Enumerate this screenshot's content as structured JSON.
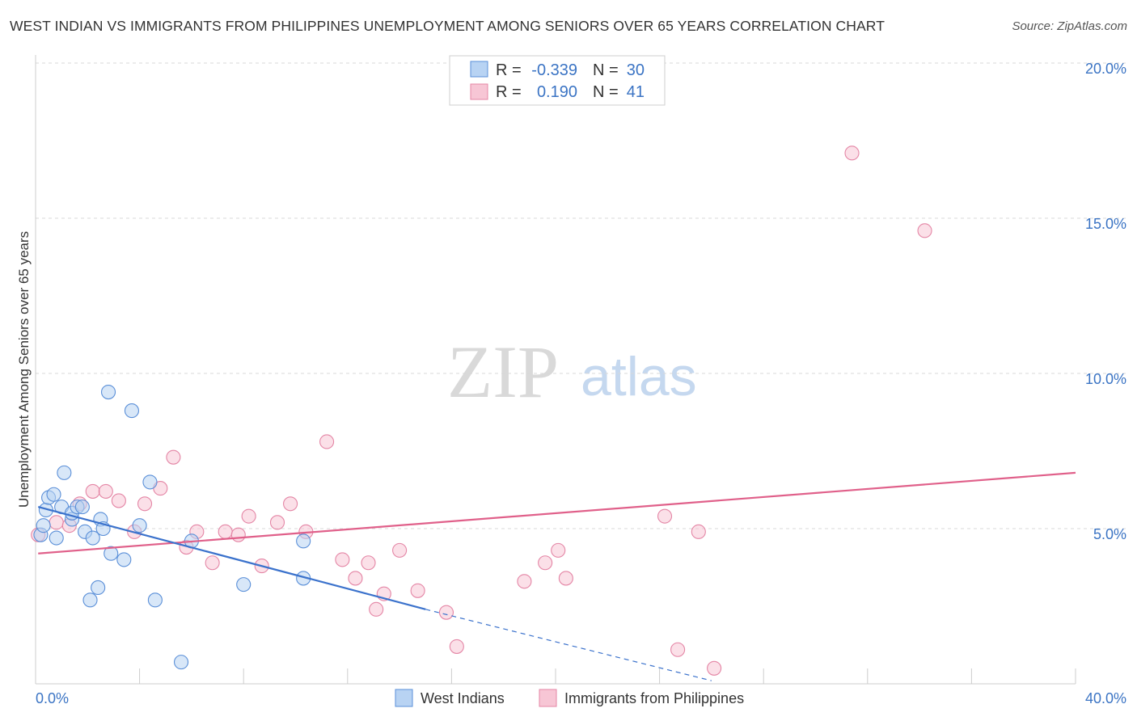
{
  "header": {
    "title": "WEST INDIAN VS IMMIGRANTS FROM PHILIPPINES UNEMPLOYMENT AMONG SENIORS OVER 65 YEARS CORRELATION CHART",
    "source": "Source: ZipAtlas.com"
  },
  "watermark": {
    "zip": "ZIP",
    "atlas": "atlas"
  },
  "legend": {
    "row1": {
      "r_label": "R =",
      "r_value": "-0.339",
      "n_label": "N =",
      "n_value": "30"
    },
    "row2": {
      "r_label": "R =",
      "r_value": "0.190",
      "n_label": "N =",
      "n_value": "41"
    }
  },
  "bottom_legend": {
    "series1": "West Indians",
    "series2": "Immigrants from Philippines"
  },
  "colors": {
    "blue_fill": "#b8d3f3",
    "blue_stroke": "#5a8fd8",
    "blue_line": "#3b72cc",
    "pink_fill": "#f7c6d5",
    "pink_stroke": "#e485a5",
    "pink_line": "#e0608a",
    "tick_text": "#3b74c4",
    "grid": "#d8d8d8"
  },
  "chart_data": {
    "type": "scatter",
    "title": "WEST INDIAN VS IMMIGRANTS FROM PHILIPPINES UNEMPLOYMENT AMONG SENIORS OVER 65 YEARS CORRELATION CHART",
    "xlabel": "",
    "ylabel": "Unemployment Among Seniors over 65 years",
    "xlim": [
      0,
      40
    ],
    "ylim": [
      0,
      20
    ],
    "x_tick_labels": [
      "0.0%",
      "40.0%"
    ],
    "y_ticks": [
      5,
      10,
      15,
      20
    ],
    "y_tick_labels": [
      "5.0%",
      "10.0%",
      "15.0%",
      "20.0%"
    ],
    "series": [
      {
        "name": "West Indians",
        "R": -0.339,
        "N": 30,
        "points": [
          [
            0.2,
            4.8
          ],
          [
            0.3,
            5.1
          ],
          [
            0.4,
            5.6
          ],
          [
            0.5,
            6.0
          ],
          [
            0.7,
            6.1
          ],
          [
            0.8,
            4.7
          ],
          [
            1.0,
            5.7
          ],
          [
            1.1,
            6.8
          ],
          [
            1.4,
            5.3
          ],
          [
            1.4,
            5.5
          ],
          [
            1.6,
            5.7
          ],
          [
            1.8,
            5.7
          ],
          [
            1.9,
            4.9
          ],
          [
            2.1,
            2.7
          ],
          [
            2.2,
            4.7
          ],
          [
            2.4,
            3.1
          ],
          [
            2.5,
            5.3
          ],
          [
            2.6,
            5.0
          ],
          [
            2.8,
            9.4
          ],
          [
            2.9,
            4.2
          ],
          [
            3.4,
            4.0
          ],
          [
            3.7,
            8.8
          ],
          [
            4.0,
            5.1
          ],
          [
            4.4,
            6.5
          ],
          [
            4.6,
            2.7
          ],
          [
            5.6,
            0.7
          ],
          [
            6.0,
            4.6
          ],
          [
            8.0,
            3.2
          ],
          [
            10.3,
            3.4
          ],
          [
            10.3,
            4.6
          ]
        ],
        "trend": {
          "x_start": 0.1,
          "y_start": 5.7,
          "x_solid_end": 15.0,
          "y_solid_end": 2.4,
          "x_dash_end": 26.0,
          "y_dash_end": 0.1
        }
      },
      {
        "name": "Immigrants from Philippines",
        "R": 0.19,
        "N": 41,
        "points": [
          [
            0.1,
            4.8
          ],
          [
            0.8,
            5.2
          ],
          [
            1.3,
            5.1
          ],
          [
            1.7,
            5.8
          ],
          [
            2.2,
            6.2
          ],
          [
            2.7,
            6.2
          ],
          [
            3.2,
            5.9
          ],
          [
            3.8,
            4.9
          ],
          [
            4.2,
            5.8
          ],
          [
            4.8,
            6.3
          ],
          [
            5.3,
            7.3
          ],
          [
            5.8,
            4.4
          ],
          [
            6.2,
            4.9
          ],
          [
            6.8,
            3.9
          ],
          [
            7.3,
            4.9
          ],
          [
            7.8,
            4.8
          ],
          [
            8.2,
            5.4
          ],
          [
            8.7,
            3.8
          ],
          [
            9.3,
            5.2
          ],
          [
            9.8,
            5.8
          ],
          [
            10.4,
            4.9
          ],
          [
            11.2,
            7.8
          ],
          [
            11.8,
            4.0
          ],
          [
            12.3,
            3.4
          ],
          [
            12.8,
            3.9
          ],
          [
            13.1,
            2.4
          ],
          [
            13.4,
            2.9
          ],
          [
            14.0,
            4.3
          ],
          [
            14.7,
            3.0
          ],
          [
            15.8,
            2.3
          ],
          [
            16.2,
            1.2
          ],
          [
            18.8,
            3.3
          ],
          [
            19.6,
            3.9
          ],
          [
            20.1,
            4.3
          ],
          [
            20.4,
            3.4
          ],
          [
            24.2,
            5.4
          ],
          [
            24.7,
            1.1
          ],
          [
            25.5,
            4.9
          ],
          [
            26.1,
            0.5
          ],
          [
            31.4,
            17.1
          ],
          [
            34.2,
            14.6
          ]
        ],
        "trend": {
          "x_start": 0.1,
          "y_start": 4.2,
          "x_end": 40.0,
          "y_end": 6.8
        }
      }
    ]
  }
}
